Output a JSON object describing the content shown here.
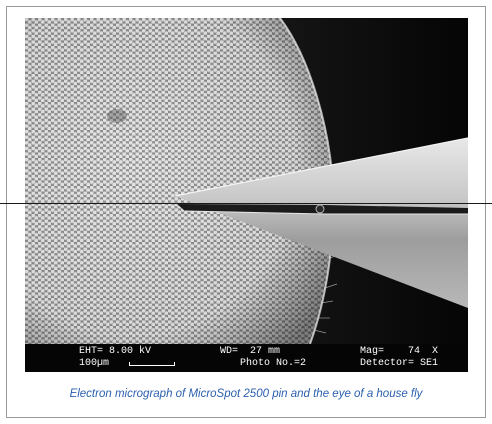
{
  "sem_info": {
    "eht": "EHT= 8.00 kV",
    "scale": "100µm",
    "wd": "WD=  27 mm",
    "photo": "Photo No.=2",
    "mag": "Mag=    74  X",
    "detector": "Detector= SE1"
  },
  "caption": "Electron micrograph of MicroSpot 2500 pin and the eye of a house fly"
}
